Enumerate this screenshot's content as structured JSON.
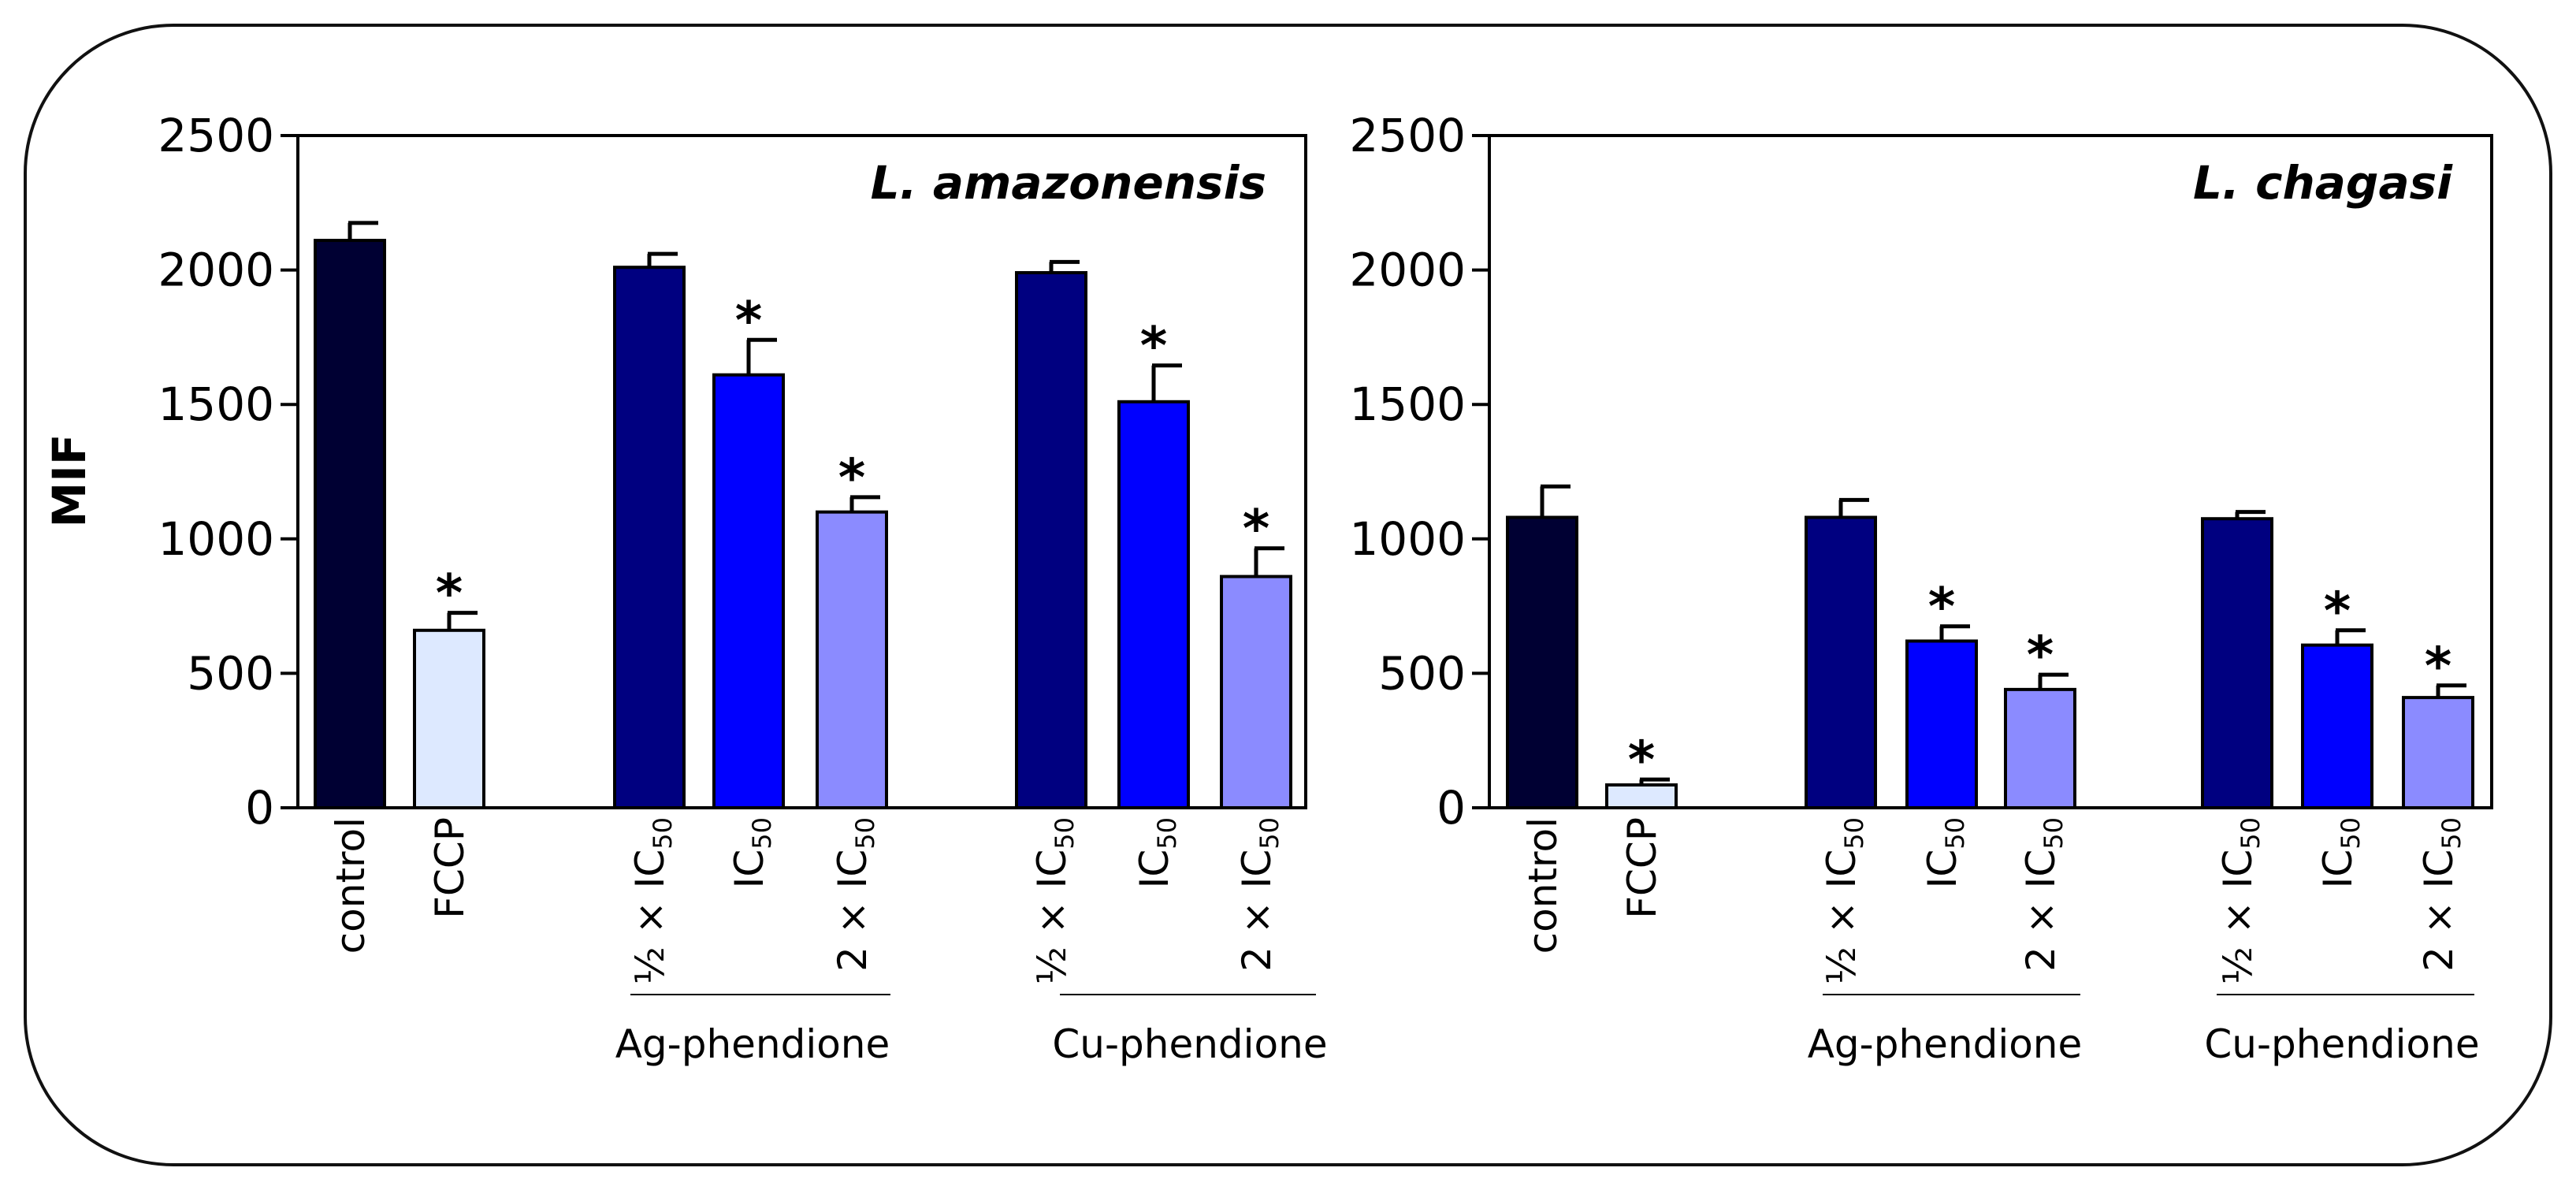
{
  "chart_data": [
    {
      "type": "bar",
      "title": "L. amazonensis",
      "ylabel": "MIF",
      "ylim": [
        0,
        2500
      ],
      "yticks": [
        "0",
        "500",
        "1000",
        "1500",
        "2000",
        "2500"
      ],
      "categories": [
        "control",
        "FCCP",
        "½ × IC50",
        "IC50",
        "2 × IC50",
        "½ × IC50",
        "IC50",
        "2 × IC50"
      ],
      "groups": [
        "Ag-phendione",
        "Cu-phendione"
      ],
      "values": [
        2110,
        660,
        2010,
        1610,
        1100,
        1990,
        1510,
        860
      ],
      "errors": [
        65,
        65,
        50,
        130,
        55,
        40,
        135,
        105
      ],
      "significant": [
        "",
        "*",
        "",
        "*",
        "*",
        "",
        "*",
        "*"
      ],
      "colors": [
        "#000033",
        "#dde9ff",
        "#000080",
        "#0000ff",
        "#8b8bff",
        "#000080",
        "#0000ff",
        "#8b8bff"
      ]
    },
    {
      "type": "bar",
      "title": "L. chagasi",
      "ylabel": "",
      "ylim": [
        0,
        2500
      ],
      "yticks": [
        "0",
        "500",
        "1000",
        "1500",
        "2000",
        "2500"
      ],
      "categories": [
        "control",
        "FCCP",
        "½ × IC50",
        "IC50",
        "2 × IC50",
        "½ × IC50",
        "IC50",
        "2 × IC50"
      ],
      "groups": [
        "Ag-phendione",
        "Cu-phendione"
      ],
      "values": [
        1080,
        85,
        1080,
        620,
        440,
        1075,
        605,
        410
      ],
      "errors": [
        115,
        20,
        65,
        55,
        55,
        25,
        55,
        45
      ],
      "significant": [
        "",
        "*",
        "",
        "*",
        "*",
        "",
        "*",
        "*"
      ],
      "colors": [
        "#000033",
        "#dde9ff",
        "#000080",
        "#0000ff",
        "#8b8bff",
        "#000080",
        "#0000ff",
        "#8b8bff"
      ]
    }
  ]
}
